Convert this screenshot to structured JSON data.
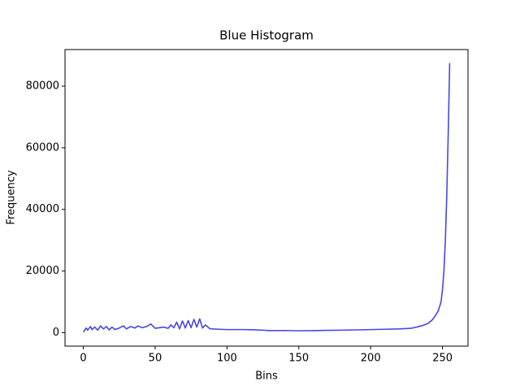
{
  "chart_data": {
    "type": "line",
    "title": "Blue Histogram",
    "x_label": "Bins",
    "y_label": "Frequency",
    "x": [
      0,
      2,
      3,
      5,
      6,
      8,
      10,
      12,
      14,
      16,
      18,
      20,
      22,
      25,
      28,
      30,
      33,
      36,
      38,
      41,
      44,
      47,
      50,
      53,
      56,
      59,
      61,
      63,
      65,
      67,
      69,
      71,
      73,
      75,
      77,
      79,
      81,
      83,
      85,
      88,
      90,
      95,
      100,
      110,
      118,
      125,
      130,
      140,
      150,
      160,
      170,
      180,
      190,
      200,
      210,
      220,
      228,
      232,
      236,
      240,
      243,
      245,
      247,
      249,
      250,
      251,
      252,
      253,
      254,
      255
    ],
    "values": [
      200,
      1500,
      800,
      2000,
      1000,
      1800,
      800,
      2200,
      1200,
      2000,
      900,
      1800,
      1000,
      1500,
      2200,
      1200,
      2000,
      1500,
      2200,
      1600,
      2000,
      2800,
      1400,
      1600,
      1800,
      1400,
      2500,
      1600,
      3400,
      1200,
      3800,
      1500,
      3900,
      1600,
      4300,
      1800,
      4500,
      1500,
      2500,
      1300,
      1200,
      1100,
      1000,
      1000,
      950,
      800,
      650,
      700,
      600,
      650,
      750,
      800,
      900,
      1000,
      1100,
      1200,
      1400,
      1800,
      2300,
      3000,
      4200,
      5500,
      7000,
      10000,
      14000,
      20000,
      30000,
      45000,
      65000,
      87500
    ],
    "color": "#4646e6",
    "xlim": [
      -12.75,
      267.75
    ],
    "xticks": [
      0,
      50,
      100,
      150,
      200,
      250
    ],
    "ylim": [
      -4375,
      91875
    ],
    "yticks": [
      0,
      20000,
      40000,
      60000,
      80000
    ]
  }
}
